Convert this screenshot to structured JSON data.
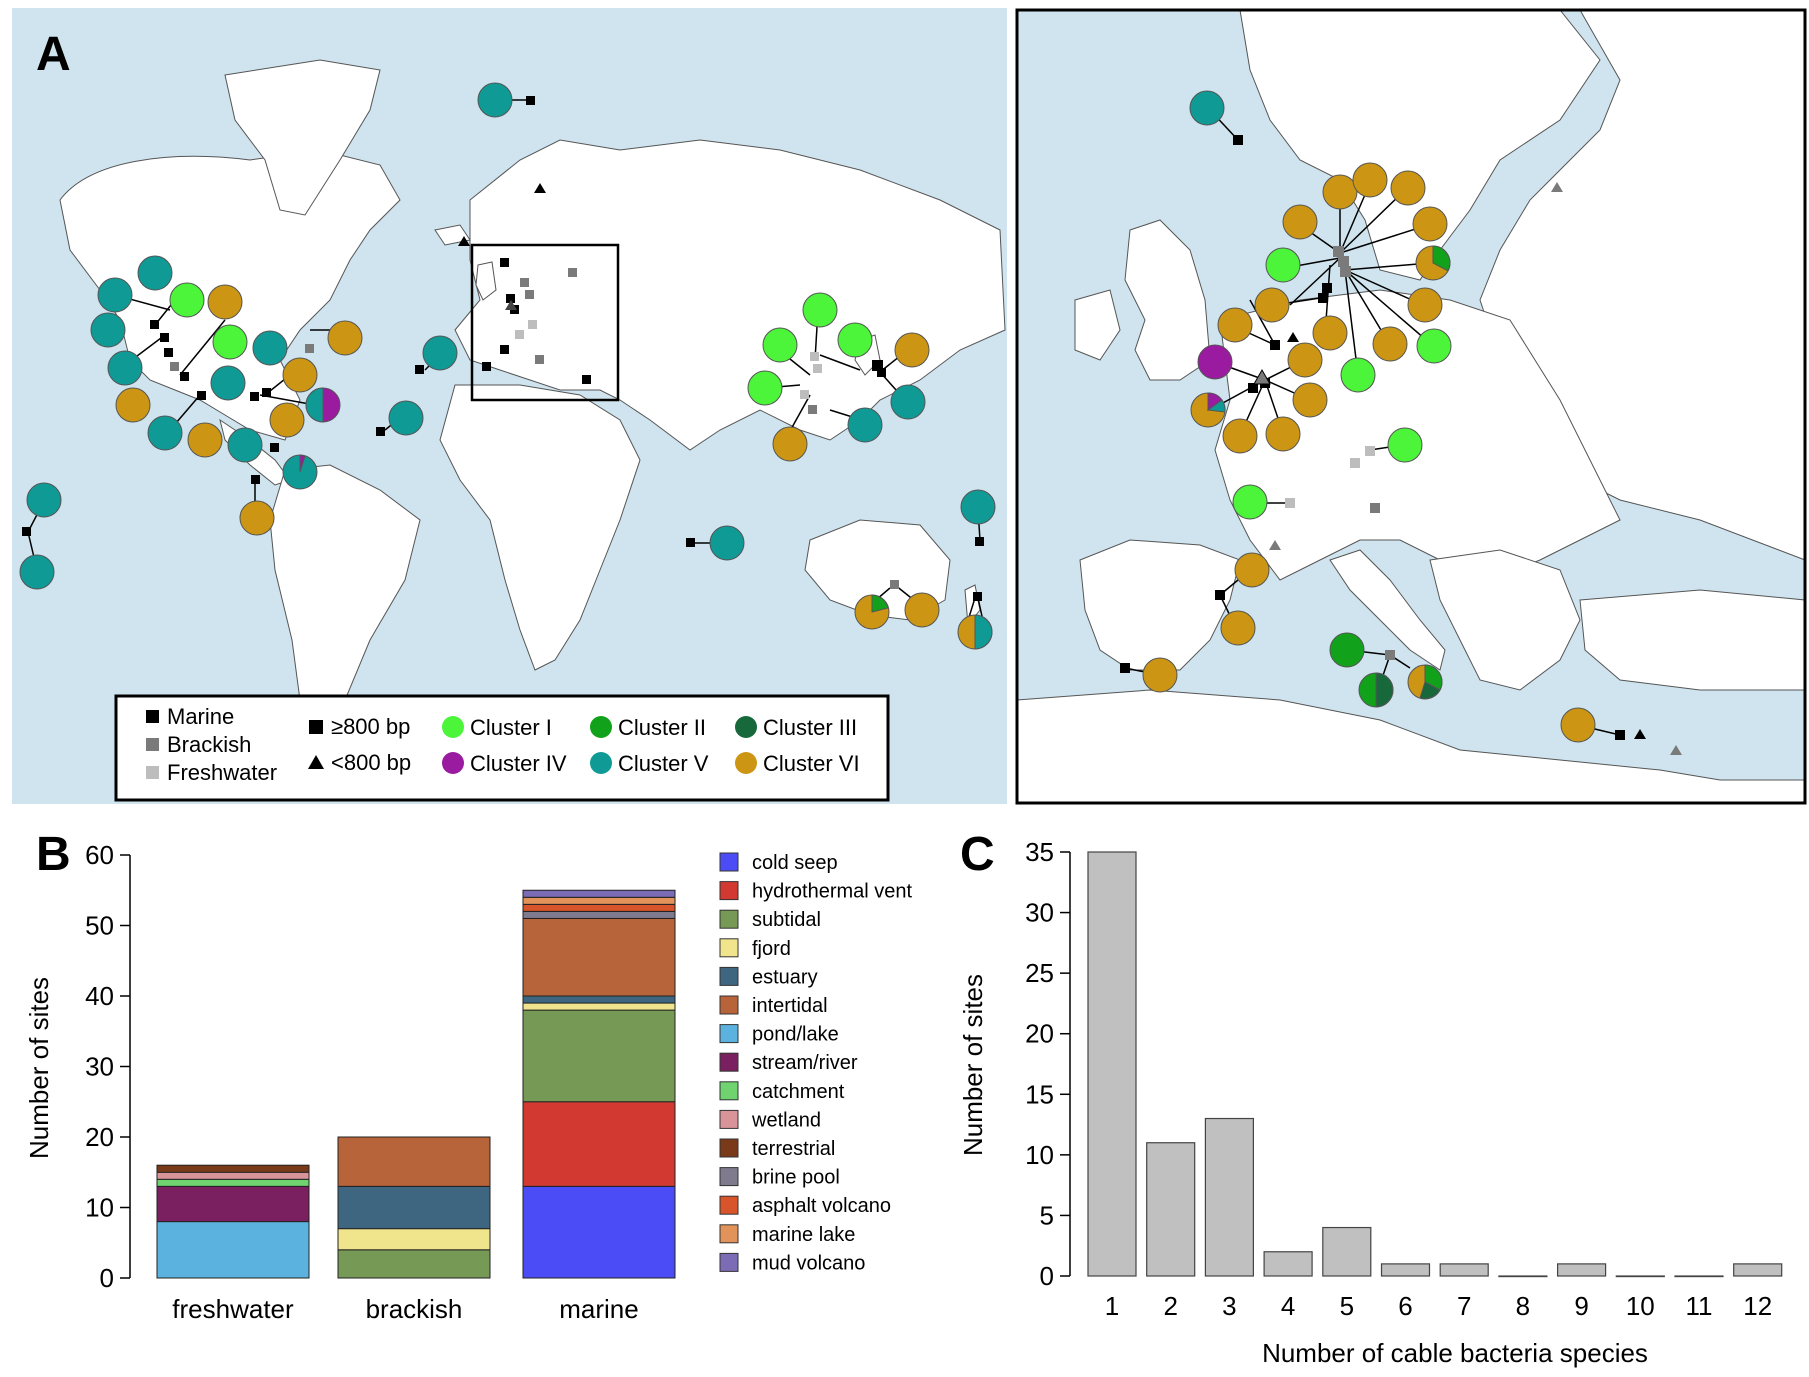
{
  "panel_labels": {
    "a": "A",
    "b": "B",
    "c": "C"
  },
  "colors": {
    "ocean": "#cfe4ee",
    "land": "#ffffff",
    "cluster_I": "#4cf53a",
    "cluster_II": "#12a11b",
    "cluster_III": "#17683a",
    "cluster_IV": "#9a1aa0",
    "cluster_V": "#0f9a96",
    "cluster_VI": "#cc9614",
    "marine": "#000000",
    "brackish": "#7a7a7a",
    "freshwater": "#bdbdbd"
  },
  "legend": {
    "marine": "Marine",
    "brackish": "Brackish",
    "freshwater": "Freshwater",
    "long_seq": "≥800 bp",
    "short_seq": "<800 bp",
    "clusters": [
      "Cluster I",
      "Cluster II",
      "Cluster III",
      "Cluster IV",
      "Cluster V",
      "Cluster VI"
    ]
  },
  "chart_data": [
    {
      "type": "bar",
      "stacked": true,
      "title": "",
      "xlabel": "",
      "ylabel": "Number of sites",
      "ylim": [
        0,
        60
      ],
      "yticks": [
        "0",
        "10",
        "20",
        "30",
        "40",
        "50",
        "60"
      ],
      "categories": [
        "freshwater",
        "brackish",
        "marine"
      ],
      "series": [
        {
          "name": "cold seep",
          "color": "#4c4cf7",
          "values": [
            0,
            0,
            13
          ]
        },
        {
          "name": "hydrothermal vent",
          "color": "#d23a31",
          "values": [
            0,
            0,
            12
          ]
        },
        {
          "name": "subtidal",
          "color": "#769a55",
          "values": [
            0,
            4,
            13
          ]
        },
        {
          "name": "fjord",
          "color": "#f0e58c",
          "values": [
            0,
            3,
            1
          ]
        },
        {
          "name": "estuary",
          "color": "#3f6680",
          "values": [
            0,
            6,
            1
          ]
        },
        {
          "name": "intertidal",
          "color": "#b8643a",
          "values": [
            0,
            7,
            11
          ]
        },
        {
          "name": "pond/lake",
          "color": "#5bb2df",
          "values": [
            8,
            0,
            0
          ]
        },
        {
          "name": "stream/river",
          "color": "#7a2060",
          "values": [
            5,
            0,
            0
          ]
        },
        {
          "name": "catchment",
          "color": "#6fd36f",
          "values": [
            1,
            0,
            0
          ]
        },
        {
          "name": "wetland",
          "color": "#d9949a",
          "values": [
            1,
            0,
            0
          ]
        },
        {
          "name": "terrestrial",
          "color": "#7a3a1a",
          "values": [
            1,
            0,
            0
          ]
        },
        {
          "name": "brine pool",
          "color": "#7f7a8e",
          "values": [
            0,
            0,
            1
          ]
        },
        {
          "name": "asphalt volcano",
          "color": "#d8542a",
          "values": [
            0,
            0,
            1
          ]
        },
        {
          "name": "marine lake",
          "color": "#e1935a",
          "values": [
            0,
            0,
            1
          ]
        },
        {
          "name": "mud volcano",
          "color": "#7c6bb5",
          "values": [
            0,
            0,
            1
          ]
        }
      ]
    },
    {
      "type": "bar",
      "title": "",
      "xlabel": "Number of cable bacteria species",
      "ylabel": "Number of sites",
      "ylim": [
        0,
        35
      ],
      "yticks": [
        "0",
        "5",
        "10",
        "15",
        "20",
        "25",
        "30",
        "35"
      ],
      "categories": [
        "1",
        "2",
        "3",
        "4",
        "5",
        "6",
        "7",
        "8",
        "9",
        "10",
        "11",
        "12"
      ],
      "values": [
        35,
        11,
        13,
        2,
        4,
        1,
        1,
        0,
        1,
        0,
        0,
        1
      ],
      "color": "#c0c0c0"
    }
  ]
}
